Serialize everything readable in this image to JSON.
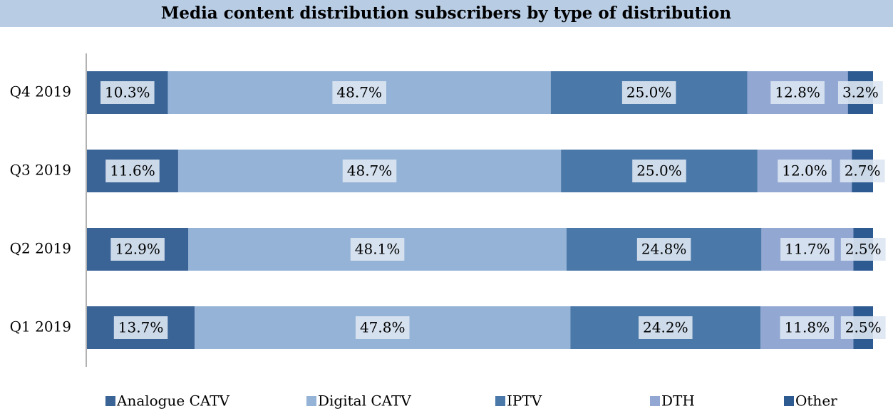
{
  "chart_data": {
    "type": "stacked_bar_horizontal",
    "title": "Media content distribution subscribers by type of distribution",
    "categories": [
      "Q4 2019",
      "Q3 2019",
      "Q2 2019",
      "Q1 2019"
    ],
    "xlim": [
      0,
      100
    ],
    "series": [
      {
        "name": "Analogue CATV",
        "color": "#3a6396",
        "values": [
          10.3,
          11.6,
          12.9,
          13.7
        ],
        "value_labels": [
          "10.3%",
          "11.6%",
          "12.9%",
          "13.7%"
        ]
      },
      {
        "name": "Digital CATV",
        "color": "#95b3d7",
        "values": [
          48.7,
          48.7,
          48.1,
          47.8
        ],
        "value_labels": [
          "48.7%",
          "48.7%",
          "48.1%",
          "47.8%"
        ]
      },
      {
        "name": "IPTV",
        "color": "#4a78a9",
        "values": [
          25.0,
          25.0,
          24.8,
          24.2
        ],
        "value_labels": [
          "25.0%",
          "25.0%",
          "24.8%",
          "24.2%"
        ]
      },
      {
        "name": "DTH",
        "color": "#92a8d3",
        "values": [
          12.8,
          12.0,
          11.7,
          11.8
        ],
        "value_labels": [
          "12.8%",
          "12.0%",
          "11.7%",
          "11.8%"
        ]
      },
      {
        "name": "Other",
        "color": "#2e5a92",
        "values": [
          3.2,
          2.7,
          2.5,
          2.5
        ],
        "value_labels": [
          "3.2%",
          "2.7%",
          "2.5%",
          "2.5%"
        ]
      }
    ],
    "legend": "bottom"
  }
}
